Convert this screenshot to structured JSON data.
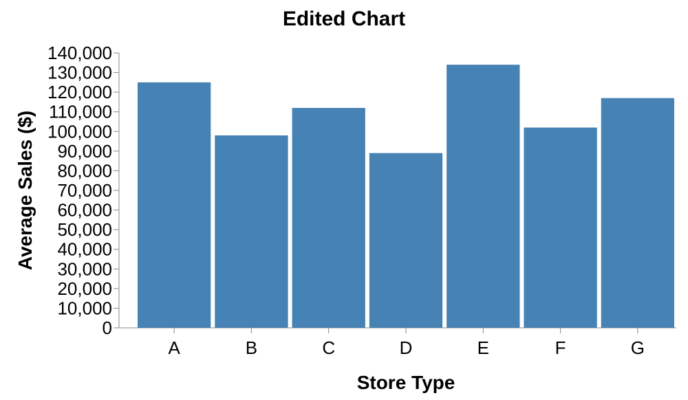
{
  "chart_data": {
    "type": "bar",
    "title": "Edited Chart",
    "xlabel": "Store Type",
    "ylabel": "Average Sales ($)",
    "categories": [
      "A",
      "B",
      "C",
      "D",
      "E",
      "F",
      "G"
    ],
    "values": [
      125000,
      98000,
      112000,
      89000,
      134000,
      102000,
      117000
    ],
    "ylim": [
      0,
      140000
    ],
    "yticks": [
      "0",
      "10,000",
      "20,000",
      "30,000",
      "40,000",
      "50,000",
      "60,000",
      "70,000",
      "80,000",
      "90,000",
      "100,000",
      "110,000",
      "120,000",
      "130,000",
      "140,000"
    ],
    "bar_color": "#4682b4",
    "axis_color": "#888888",
    "grid": false,
    "legend": "none"
  }
}
